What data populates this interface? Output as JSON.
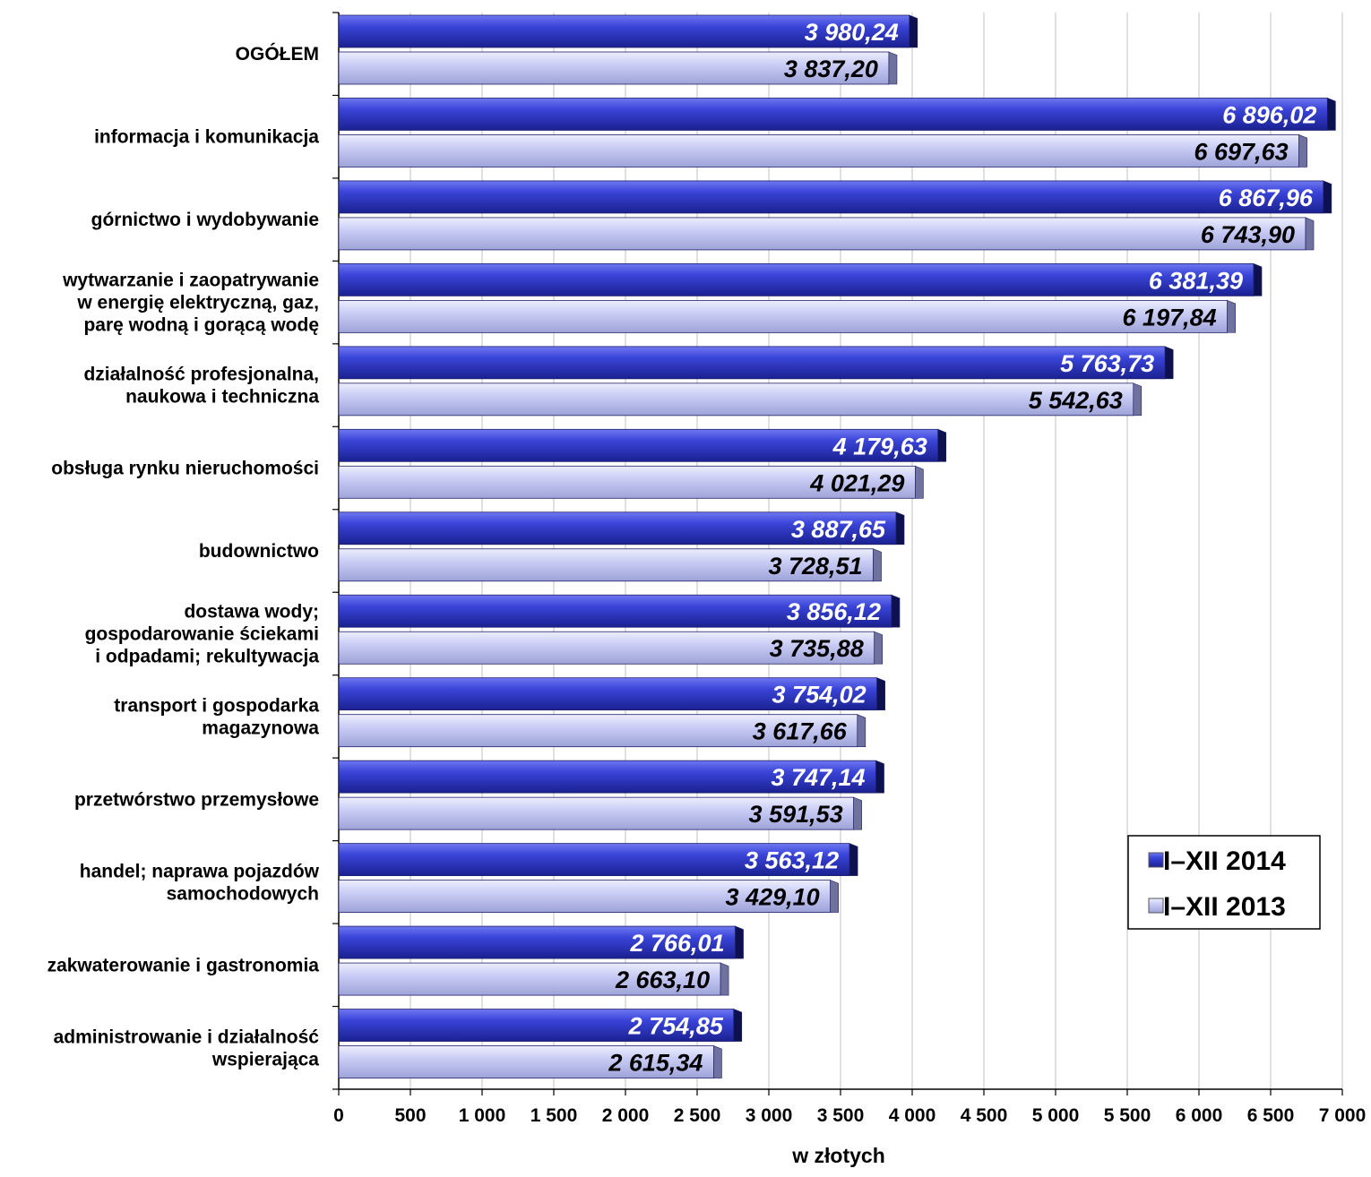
{
  "chart_data": {
    "type": "bar",
    "orientation": "horizontal",
    "categories": [
      [
        "OGÓŁEM"
      ],
      [
        "informacja i komunikacja"
      ],
      [
        "górnictwo i wydobywanie"
      ],
      [
        "wytwarzanie i zaopatrywanie",
        "w energię elektryczną, gaz,",
        "parę wodną i gorącą wodę"
      ],
      [
        "działalność profesjonalna,",
        "naukowa i techniczna"
      ],
      [
        "obsługa rynku nieruchomości"
      ],
      [
        "budownictwo"
      ],
      [
        "dostawa wody;",
        "gospodarowanie ściekami",
        "i odpadami; rekultywacja"
      ],
      [
        "transport i gospodarka",
        "magazynowa"
      ],
      [
        "przetwórstwo przemysłowe"
      ],
      [
        "handel; naprawa pojazdów",
        "samochodowych"
      ],
      [
        "zakwaterowanie i gastronomia"
      ],
      [
        "administrowanie i działalność",
        "wspierająca"
      ]
    ],
    "series": [
      {
        "name": "I–XII 2014",
        "color": "#2b35c9",
        "label_color": "#ffffff",
        "values": [
          3980.24,
          6896.02,
          6867.96,
          6381.39,
          5763.73,
          4179.63,
          3887.65,
          3856.12,
          3754.02,
          3747.14,
          3563.12,
          2766.01,
          2754.85
        ],
        "labels": [
          "3 980,24",
          "6 896,02",
          "6 867,96",
          "6 381,39",
          "5 763,73",
          "4 179,63",
          "3 887,65",
          "3 856,12",
          "3 754,02",
          "3 747,14",
          "3 563,12",
          "2 766,01",
          "2 754,85"
        ]
      },
      {
        "name": "I–XII 2013",
        "color": "#c4c8f2",
        "label_color": "#000000",
        "values": [
          3837.2,
          6697.63,
          6743.9,
          6197.84,
          5542.63,
          4021.29,
          3728.51,
          3735.88,
          3617.66,
          3591.53,
          3429.1,
          2663.1,
          2615.34
        ],
        "labels": [
          "3 837,20",
          "6 697,63",
          "6 743,90",
          "6 197,84",
          "5 542,63",
          "4 021,29",
          "3 728,51",
          "3 735,88",
          "3 617,66",
          "3 591,53",
          "3 429,10",
          "2 663,10",
          "2 615,34"
        ]
      }
    ],
    "xlim": [
      0,
      7000
    ],
    "x_ticks": [
      0,
      500,
      1000,
      1500,
      2000,
      2500,
      3000,
      3500,
      4000,
      4500,
      5000,
      5500,
      6000,
      6500,
      7000
    ],
    "x_tick_labels": [
      "0",
      "500",
      "1 000",
      "1 500",
      "2 000",
      "2 500",
      "3 000",
      "3 500",
      "4 000",
      "4 500",
      "5 000",
      "5 500",
      "6 000",
      "6 500",
      "7 000"
    ],
    "xlabel": "w złotych",
    "ylabel": "",
    "title": "",
    "grid": "vertical",
    "legend_position": "bottom-right"
  }
}
